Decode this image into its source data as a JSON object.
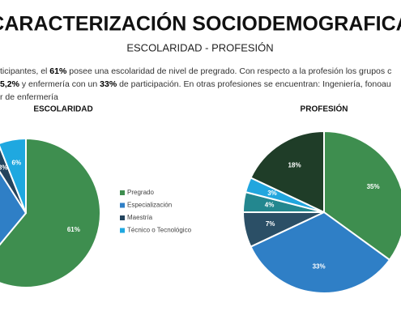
{
  "header": {
    "title": "CARACTERIZACIÓN SOCIODEMOGRAFICA",
    "subtitle": "ESCOLARIDAD  - PROFESIÓN"
  },
  "paragraph": [
    [
      {
        "text": "ticipantes, el ",
        "bold": false
      },
      {
        "text": "61%",
        "bold": true
      },
      {
        "text": " posee una escolaridad de nivel de pregrado. Con respecto a la profesión los grupos c",
        "bold": false
      }
    ],
    [
      {
        "text": "5,2%",
        "bold": true
      },
      {
        "text": " y enfermería con un ",
        "bold": false
      },
      {
        "text": "33%",
        "bold": true
      },
      {
        "text": " de participación. En otras profesiones se encuentran: Ingeniería, fonoau",
        "bold": false
      }
    ],
    [
      {
        "text": "r de enfermería",
        "bold": false
      }
    ]
  ],
  "chart_data": [
    {
      "type": "pie",
      "title": "ESCOLARIDAD",
      "categories": [
        "Pregrado",
        "Especialización",
        "Maestría",
        "Técnico o Tecnológico"
      ],
      "values": [
        61,
        30,
        3,
        6
      ],
      "colors": [
        "#3e8e4f",
        "#2f7fc6",
        "#24445e",
        "#1fa8e0"
      ],
      "legend": "right"
    },
    {
      "type": "pie",
      "title": "PROFESIÓN",
      "categories": [
        null,
        null,
        null,
        null,
        null,
        null
      ],
      "values": [
        35,
        33,
        7,
        4,
        3,
        18
      ],
      "colors": [
        "#3e8e4f",
        "#2f7fc6",
        "#2b4f66",
        "#23878f",
        "#21a6de",
        "#1f3d28"
      ],
      "legend": "none"
    }
  ]
}
